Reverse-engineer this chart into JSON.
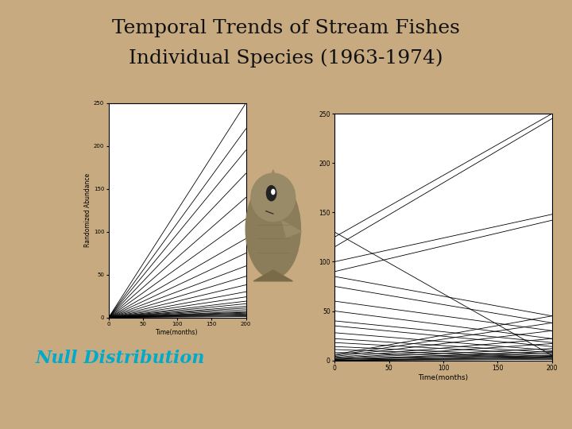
{
  "title_line1": "Temporal Trends of Stream Fishes",
  "title_line2": "Individual Species (1963-1974)",
  "title_fontsize": 18,
  "title_color": "#111111",
  "background_color": "#C8AA80",
  "null_label": "Null Distribution",
  "null_label_color": "#00AACC",
  "null_label_fontsize": 16,
  "plot_bg": "#ffffff",
  "left_ylabel": "Randomized Abundance",
  "left_xlabel": "Time(months)",
  "right_xlabel": "Time(months)",
  "xlim": [
    0,
    200
  ],
  "ylim_left": [
    0,
    250
  ],
  "ylim_right": [
    0,
    250
  ],
  "left_yticks": [
    0,
    50,
    100,
    150,
    200,
    250
  ],
  "right_yticks": [
    0,
    50,
    100,
    150,
    200,
    250
  ],
  "xticks": [
    0,
    50,
    100,
    150,
    200
  ],
  "left_lines_end": [
    250,
    220,
    195,
    168,
    140,
    115,
    92,
    75,
    60,
    48,
    38,
    30,
    24,
    19,
    16,
    13,
    11,
    9,
    7,
    6,
    5,
    4,
    3,
    2,
    1
  ],
  "right_lines_start": [
    130,
    125,
    115,
    100,
    90,
    85,
    75,
    60,
    50,
    40,
    35,
    28,
    22,
    18,
    14,
    11,
    8,
    6,
    5,
    4,
    3,
    2,
    2,
    1,
    1,
    1,
    0,
    0,
    0,
    0
  ],
  "right_lines_end": [
    5,
    250,
    245,
    148,
    142,
    45,
    38,
    30,
    22,
    18,
    14,
    10,
    8,
    6,
    4,
    3,
    2,
    45,
    38,
    30,
    22,
    17,
    12,
    9,
    7,
    5,
    4,
    3,
    2,
    1
  ]
}
